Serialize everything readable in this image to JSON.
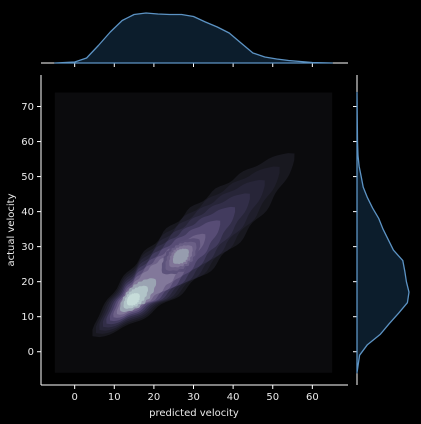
{
  "chart_data": {
    "type": "kde-jointplot",
    "xlabel": "predicted velocity",
    "ylabel": "actual velocity",
    "xlim": [
      -8.5,
      69
    ],
    "ylim": [
      -9.5,
      79
    ],
    "xticks": [
      0,
      10,
      20,
      30,
      40,
      50,
      60
    ],
    "yticks": [
      0,
      10,
      20,
      30,
      40,
      50,
      60,
      70
    ],
    "kde_support": {
      "x": [
        -5,
        65
      ],
      "y": [
        -6,
        74
      ]
    },
    "joint_kde": {
      "principal_axis": {
        "start": [
          9,
          9
        ],
        "end": [
          51,
          52
        ]
      },
      "levels": 10,
      "peak": [
        14.5,
        14
      ],
      "secondary_peak": [
        27,
        27
      ]
    },
    "marginal_x": {
      "x": [
        -5,
        0,
        3,
        6,
        9,
        12,
        15,
        18,
        21,
        24,
        27,
        30,
        33,
        36,
        39,
        42,
        45,
        48,
        51,
        54,
        57,
        60,
        65
      ],
      "density": [
        0,
        0.02,
        0.1,
        0.35,
        0.62,
        0.85,
        0.97,
        1.0,
        0.98,
        0.97,
        0.97,
        0.93,
        0.82,
        0.72,
        0.6,
        0.4,
        0.2,
        0.12,
        0.08,
        0.05,
        0.03,
        0.01,
        0
      ]
    },
    "marginal_y": {
      "y": [
        -6,
        -1,
        2,
        5,
        8,
        11,
        14,
        17,
        20,
        23,
        26,
        29,
        32,
        35,
        38,
        41,
        44,
        47,
        50,
        53,
        56,
        60,
        74
      ],
      "density": [
        0,
        0.05,
        0.2,
        0.45,
        0.62,
        0.8,
        0.97,
        1.0,
        0.95,
        0.92,
        0.88,
        0.7,
        0.6,
        0.5,
        0.42,
        0.3,
        0.2,
        0.12,
        0.08,
        0.04,
        0.02,
        0.01,
        0
      ]
    },
    "colors": {
      "background": "#000000",
      "plot_face": "#0b0b0d",
      "spine": "#ffffff",
      "text": "#eaeaea",
      "marginal_line": "#5c93c4",
      "marginal_fill": "#0c1d2c",
      "kde_levels": [
        "#18181f",
        "#1f1e2b",
        "#272538",
        "#322e48",
        "#423b5e",
        "#574c75",
        "#6d6188",
        "#82789a",
        "#9aa3b2",
        "#b1c4c8",
        "#c6dcd9"
      ]
    }
  }
}
